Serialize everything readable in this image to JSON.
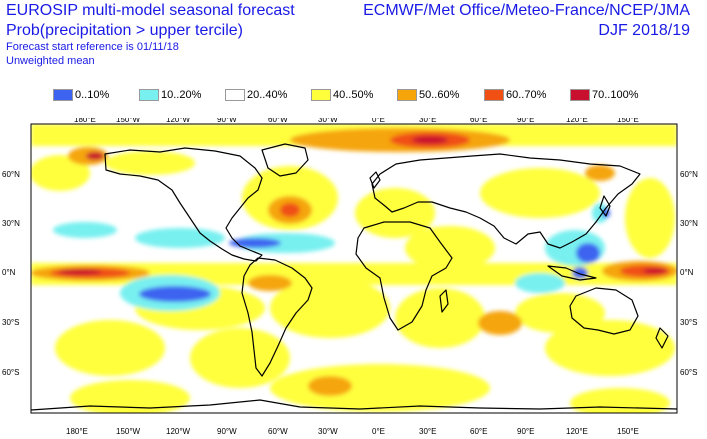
{
  "header": {
    "title_line1": "EUROSIP multi-model seasonal forecast",
    "title_line2": "Prob(precipitation > upper tercile)",
    "forecast_start": "Forecast start reference is 01/11/18",
    "weighting": "Unweighted mean",
    "centres": "ECMWF/Met Office/Meteo-France/NCEP/JMA",
    "season": "DJF 2018/19"
  },
  "legend": [
    {
      "label": "0..10%",
      "color": "#3c64f0"
    },
    {
      "label": "10..20%",
      "color": "#78f0f0"
    },
    {
      "label": "20..40%",
      "color": "#ffffff"
    },
    {
      "label": "40..50%",
      "color": "#ffff3c"
    },
    {
      "label": "50..60%",
      "color": "#f5a50a"
    },
    {
      "label": "60..70%",
      "color": "#f05014"
    },
    {
      "label": "70..100%",
      "color": "#c8102e"
    }
  ],
  "map": {
    "lon_labels": [
      "180°E",
      "150°W",
      "120°W",
      "90°W",
      "60°W",
      "30°W",
      "0°E",
      "30°E",
      "60°E",
      "90°E",
      "120°E",
      "150°E"
    ],
    "lat_labels": [
      "60°N",
      "30°N",
      "0°N",
      "30°S",
      "60°S"
    ]
  }
}
